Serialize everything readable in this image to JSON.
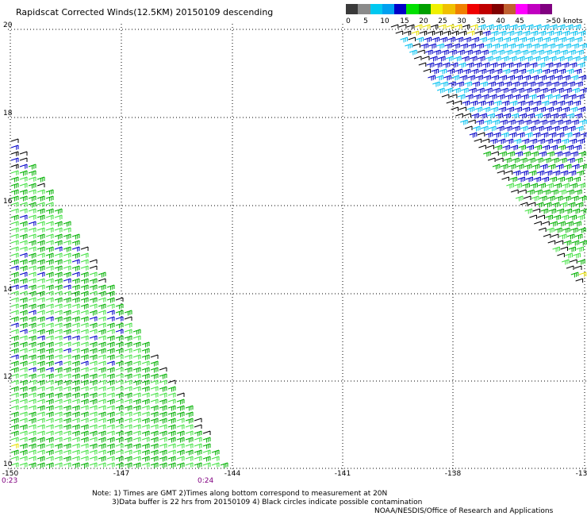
{
  "title": "Rapidscat Corrected Winds(12.5KM) 20150109 descending",
  "legend": {
    "colors": [
      "#3a3a3a",
      "#8a8a8a",
      "#00c8f0",
      "#00a0f0",
      "#0000c8",
      "#00e000",
      "#00a000",
      "#f0f000",
      "#f0c000",
      "#f08000",
      "#f00000",
      "#c00000",
      "#800000",
      "#c06030",
      "#ff00ff",
      "#c000c0",
      "#800080"
    ],
    "ticks": [
      "0",
      "5",
      "10",
      "15",
      "20",
      "25",
      "30",
      "35",
      "40",
      "45",
      ">50 knots"
    ]
  },
  "latitudes": [
    "20",
    "18",
    "16",
    "14",
    "12",
    "10"
  ],
  "longitudes": [
    "-150",
    "-147",
    "-144",
    "-141",
    "-138",
    "-13"
  ],
  "times": [
    "0:23",
    "0:24"
  ],
  "notes": {
    "line1": "Note: 1) Times are GMT 2)Times along bottom correspond to measurement at 20N",
    "line2": "3)Data buffer is 22 hrs from 20150109 4) Black circles indicate possible contamination"
  },
  "credit": "NOAA/NESDIS/Office of Research and Applications",
  "map_data": {
    "lat_range": [
      10,
      20
    ],
    "lon_range": [
      -150,
      -135
    ],
    "gridlines": true,
    "barb_colors": {
      "calm": "#000000",
      "light": "#0000c8",
      "moderate": "#00b000",
      "moderate_light": "#40e040",
      "strong": "#e8e000",
      "cyan": "#00c0f0"
    }
  }
}
